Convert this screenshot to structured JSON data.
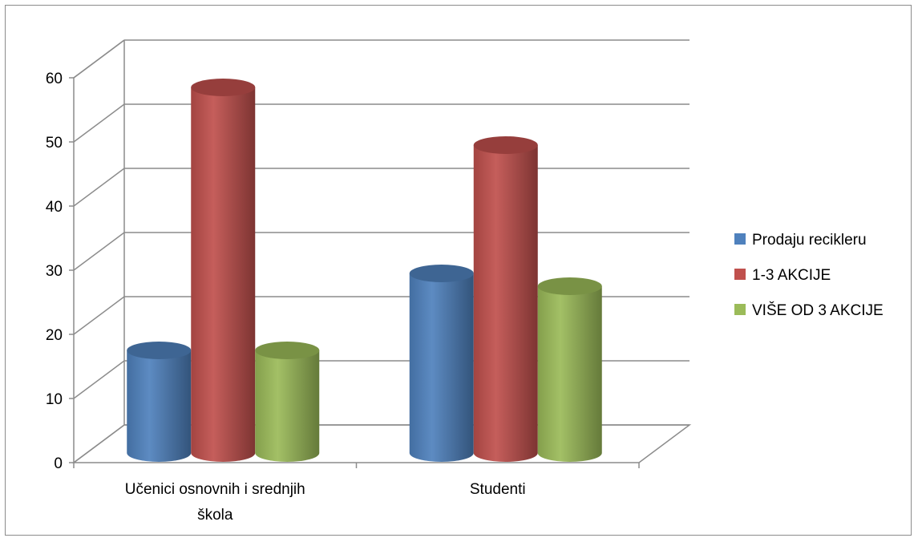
{
  "chart_data": {
    "type": "bar",
    "style": "3d-cylinder",
    "categories": [
      "Učenici osnovnih i srednjih škola",
      "Studenti"
    ],
    "category_lines": [
      [
        "Učenici osnovnih i srednjih",
        "škola"
      ],
      [
        "Studenti"
      ]
    ],
    "series": [
      {
        "name": "Prodaju recikleru",
        "values": [
          16,
          28
        ],
        "color": "#4f81bd"
      },
      {
        "name": "1-3 AKCIJE",
        "values": [
          57,
          48
        ],
        "color": "#c0504d"
      },
      {
        "name": "VIŠE OD 3 AKCIJE",
        "values": [
          16,
          26
        ],
        "color": "#9bbb59"
      }
    ],
    "ylim": [
      0,
      60
    ],
    "yticks": [
      0,
      10,
      20,
      30,
      40,
      50,
      60
    ],
    "title": "",
    "xlabel": "",
    "ylabel": "",
    "grid": true,
    "legend_position": "right"
  }
}
